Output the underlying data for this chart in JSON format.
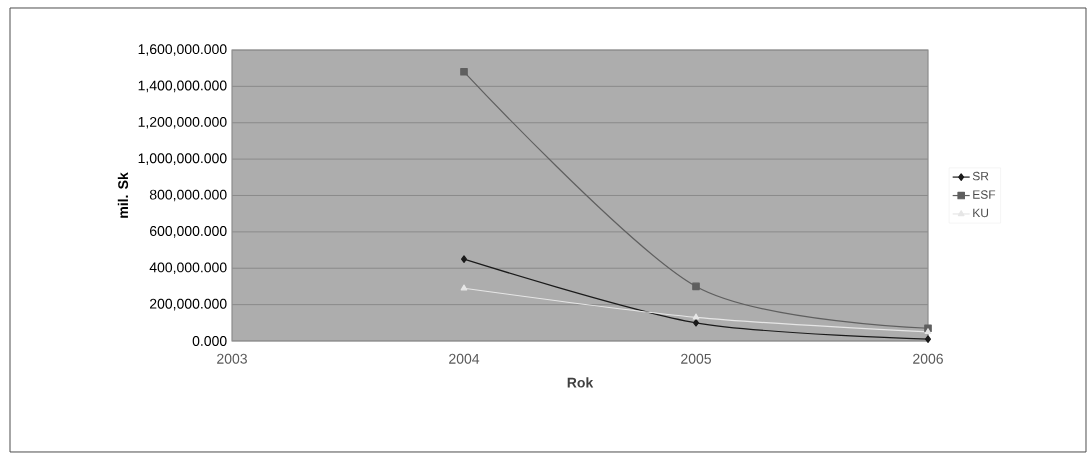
{
  "chart_data": {
    "type": "line",
    "xlabel": "Rok",
    "ylabel": "mil. Sk",
    "x": [
      2004,
      2005,
      2006
    ],
    "series": [
      {
        "name": "SR",
        "color": "#1a1a1a",
        "marker": "diamond",
        "values": [
          450000,
          100000,
          10000
        ]
      },
      {
        "name": "ESF",
        "color": "#5f5f5f",
        "marker": "square",
        "values": [
          1480000,
          300000,
          70000
        ]
      },
      {
        "name": "KU",
        "color": "#e6e6e6",
        "marker": "triangle",
        "values": [
          290000,
          130000,
          50000
        ]
      }
    ],
    "xlim": [
      2003,
      2006
    ],
    "xticks": [
      2003,
      2004,
      2005,
      2006
    ],
    "ylim": [
      0,
      1600000
    ],
    "yticks": [
      {
        "value": 0,
        "label": "0.000"
      },
      {
        "value": 200000,
        "label": "200,000.000"
      },
      {
        "value": 400000,
        "label": "400,000.000"
      },
      {
        "value": 600000,
        "label": "600,000.000"
      },
      {
        "value": 800000,
        "label": "800,000.000"
      },
      {
        "value": 1000000,
        "label": "1,000,000.000"
      },
      {
        "value": 1200000,
        "label": "1,200,000.000"
      },
      {
        "value": 1400000,
        "label": "1,400,000.000"
      },
      {
        "value": 1600000,
        "label": "1,600,000.000"
      }
    ],
    "grid": "y",
    "legend": "right",
    "line_style": "solid"
  }
}
